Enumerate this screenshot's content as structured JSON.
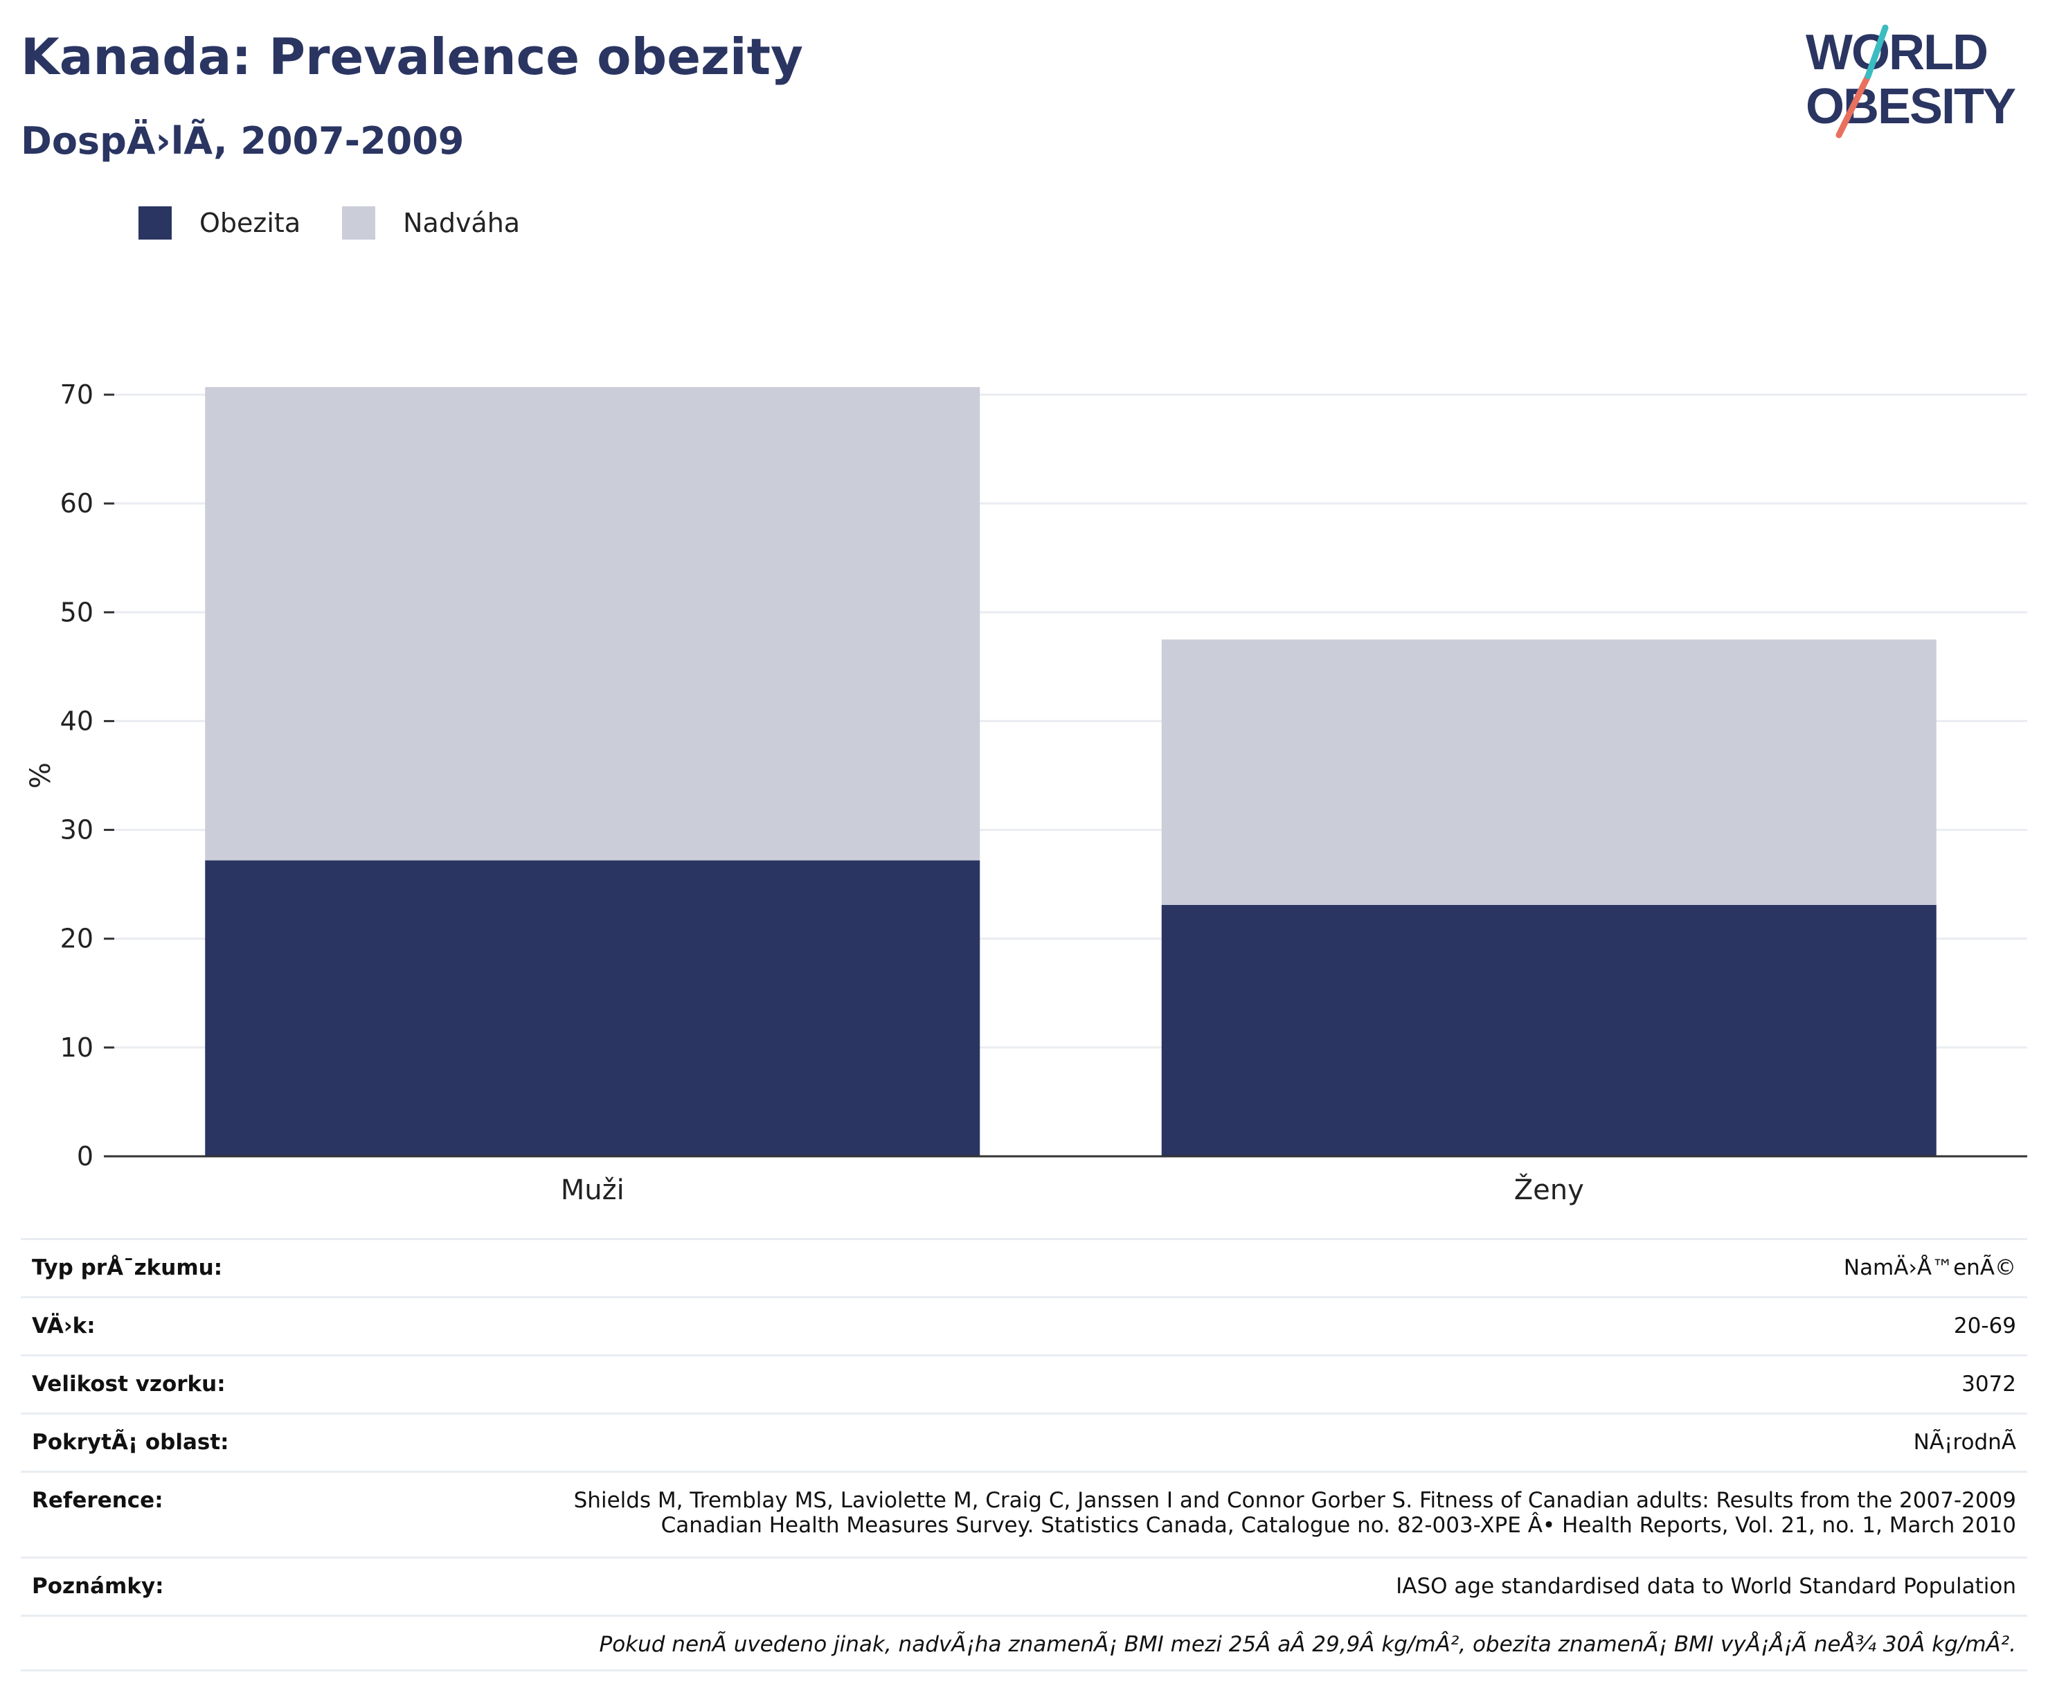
{
  "header": {
    "title": "Kanada: Prevalence obezity",
    "subtitle": "DospÄ›lÃ, 2007-2009"
  },
  "logo": {
    "line1": "WORLD",
    "line2": "OBESITY"
  },
  "colors": {
    "obesity": "#2a3562",
    "overweight": "#cbcdd8",
    "title": "#2a3562"
  },
  "chart_data": {
    "type": "bar",
    "stacked": true,
    "categories": [
      "Muži",
      "Ženy"
    ],
    "series": [
      {
        "name": "Obezita",
        "values": [
          27.2,
          23.1
        ],
        "color": "#2a3562"
      },
      {
        "name": "Nadváha",
        "values": [
          43.5,
          24.4
        ],
        "color": "#cbcdd8"
      }
    ],
    "ylabel": "%",
    "ylim": [
      0,
      70
    ],
    "yticks": [
      0,
      10,
      20,
      30,
      40,
      50,
      60,
      70
    ],
    "grid": true,
    "legend_position": "top-left"
  },
  "info": {
    "rows": [
      {
        "label": "Typ prÅ¯zkumu:",
        "value": "NamÄ›Å™enÃ©"
      },
      {
        "label": "VÄ›k:",
        "value": "20-69"
      },
      {
        "label": "Velikost vzorku:",
        "value": "3072"
      },
      {
        "label": "PokrytÃ¡ oblast:",
        "value": "NÃ¡rodnÃ"
      },
      {
        "label": "Reference:",
        "value_lines": [
          "Shields M, Tremblay MS, Laviolette M, Craig C, Janssen I and Connor Gorber S. Fitness of Canadian adults: Results from the 2007-2009",
          "Canadian Health Measures Survey. Statistics Canada, Catalogue no. 82-003-XPE Â• Health Reports, Vol. 21, no. 1, March 2010"
        ]
      },
      {
        "label": "Poznámky:",
        "value": "IASO age standardised data to World Standard Population"
      }
    ],
    "footnote": "Pokud nenÃ uvedeno jinak, nadvÃ¡ha znamenÃ¡ BMI mezi 25Â aÂ 29,9Â kg/mÂ², obezita znamenÃ¡ BMI vyÅ¡Å¡Ã neÅ¾ 30Â kg/mÂ²."
  }
}
